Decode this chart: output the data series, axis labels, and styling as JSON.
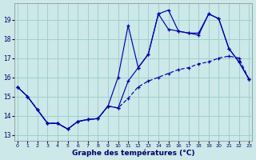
{
  "xlabel": "Graphe des températures (°C)",
  "background_color": "#cce8e8",
  "grid_color": "#99cccc",
  "line_color": "#0000aa",
  "xlim_min": -0.3,
  "xlim_max": 23.3,
  "ylim_min": 12.7,
  "ylim_max": 19.85,
  "yticks": [
    13,
    14,
    15,
    16,
    17,
    18,
    19
  ],
  "xticks": [
    0,
    1,
    2,
    3,
    4,
    5,
    6,
    7,
    8,
    9,
    10,
    11,
    12,
    13,
    14,
    15,
    16,
    17,
    18,
    19,
    20,
    21,
    22,
    23
  ],
  "line1_x": [
    0,
    1,
    2,
    3,
    4,
    5,
    6,
    7,
    8,
    9,
    10,
    11,
    12,
    13,
    14,
    15,
    16,
    17,
    18,
    19,
    20,
    21,
    22,
    23
  ],
  "line1_y": [
    15.5,
    15.0,
    14.3,
    13.6,
    13.6,
    13.3,
    13.7,
    13.8,
    13.85,
    14.5,
    16.0,
    18.7,
    16.5,
    17.2,
    19.3,
    18.5,
    18.4,
    18.3,
    18.2,
    19.3,
    19.05,
    17.5,
    16.8,
    15.9
  ],
  "line2_x": [
    0,
    1,
    2,
    3,
    4,
    5,
    6,
    7,
    8,
    9,
    10,
    11,
    12,
    13,
    14,
    15,
    16,
    17,
    18,
    19,
    20,
    21,
    22,
    23
  ],
  "line2_y": [
    15.5,
    15.0,
    14.3,
    13.6,
    13.6,
    13.3,
    13.7,
    13.8,
    13.85,
    14.5,
    14.4,
    14.9,
    15.5,
    15.8,
    16.0,
    16.2,
    16.4,
    16.5,
    16.7,
    16.8,
    17.0,
    17.1,
    17.0,
    15.9
  ],
  "line3_x": [
    0,
    1,
    2,
    3,
    4,
    5,
    6,
    7,
    8,
    9,
    10,
    11,
    12,
    13,
    14,
    15,
    16,
    17,
    18,
    19,
    20,
    21,
    22,
    23
  ],
  "line3_y": [
    15.5,
    15.0,
    14.3,
    13.6,
    13.6,
    13.3,
    13.7,
    13.8,
    13.85,
    14.5,
    14.4,
    15.8,
    16.5,
    17.2,
    19.3,
    19.5,
    18.4,
    18.3,
    18.3,
    19.3,
    19.05,
    17.5,
    16.8,
    15.9
  ]
}
